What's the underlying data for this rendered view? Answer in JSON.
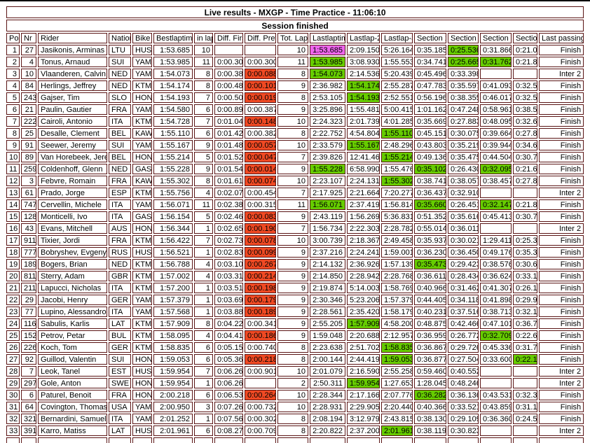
{
  "title": "Live results - MXGP - Time Practice - 11:06:10",
  "status": "Session finished",
  "colors": {
    "magenta": "#ee66ee",
    "green": "#66cc00",
    "orange": "#f04923",
    "border": "#5a1414"
  },
  "columns": [
    {
      "key": "pos",
      "label": "Pos"
    },
    {
      "key": "nr",
      "label": "Nr"
    },
    {
      "key": "rider",
      "label": "Rider"
    },
    {
      "key": "nation",
      "label": "Nation"
    },
    {
      "key": "bike",
      "label": "Bike"
    },
    {
      "key": "best",
      "label": "Bestlaptime"
    },
    {
      "key": "inlap",
      "label": "in lap"
    },
    {
      "key": "difffirst",
      "label": "Diff. First"
    },
    {
      "key": "diffprev",
      "label": "Diff. Prev."
    },
    {
      "key": "totlaps",
      "label": "Tot. Laps"
    },
    {
      "key": "last1",
      "label": "Lastlaptime"
    },
    {
      "key": "last2",
      "label": "Lastlap-2"
    },
    {
      "key": "last3",
      "label": "Lastlap-3"
    },
    {
      "key": "s1",
      "label": "Section 1"
    },
    {
      "key": "s2",
      "label": "Section 2"
    },
    {
      "key": "s3",
      "label": "Section 3"
    },
    {
      "key": "s4",
      "label": "Section 4"
    },
    {
      "key": "passing",
      "label": "Last passing"
    }
  ],
  "rows": [
    {
      "c": [
        "1",
        "27",
        "Jasikonis, Arminas",
        "LTU",
        "HUS",
        "1:53.685",
        "10",
        "",
        "",
        "10",
        "1:53.685",
        "2:09.150",
        "5:26.164",
        "0:35.185",
        "0:25.536",
        "0:31.866",
        "0:21.098",
        "Finish"
      ],
      "hl": {
        "last1": "magenta",
        "s2": "green"
      }
    },
    {
      "c": [
        "2",
        "4",
        "Tonus, Arnaud",
        "SUI",
        "YAM",
        "1:53.985",
        "11",
        "0:00.300",
        "0:00.300",
        "11",
        "1:53.985",
        "3:08.930",
        "1:55.553",
        "0:34.741",
        "0:25.665",
        "0:31.762",
        "0:21.817",
        "Finish"
      ],
      "hl": {
        "last1": "green",
        "s2": "green",
        "s3": "green"
      }
    },
    {
      "c": [
        "3",
        "10",
        "Vlaanderen, Calvin",
        "NED",
        "YAM",
        "1:54.073",
        "8",
        "0:00.388",
        "0:00.088",
        "8",
        "1:54.073",
        "2:14.536",
        "5:20.439",
        "0:45.496",
        "0:33.398",
        "",
        "",
        "Inter 2"
      ],
      "hl": {
        "diffprev": "orange",
        "last1": "green"
      }
    },
    {
      "c": [
        "4",
        "84",
        "Herlings, Jeffrey",
        "NED",
        "KTM",
        "1:54.174",
        "8",
        "0:00.489",
        "0:00.101",
        "9",
        "2:36.982",
        "1:54.174",
        "2:55.287",
        "0:47.783",
        "0:35.597",
        "0:41.093",
        "0:32.509",
        "Finish"
      ],
      "hl": {
        "diffprev": "orange",
        "last2": "green"
      }
    },
    {
      "c": [
        "5",
        "243",
        "Gajser, Tim",
        "SLO",
        "HON",
        "1:54.193",
        "7",
        "0:00.508",
        "0:00.019",
        "8",
        "2:53.105",
        "1:54.193",
        "2:52.551",
        "0:56.196",
        "0:38.355",
        "0:46.017",
        "0:32.537",
        "Finish"
      ],
      "hl": {
        "diffprev": "orange",
        "last2": "green"
      }
    },
    {
      "c": [
        "6",
        "21",
        "Paulin, Gautier",
        "FRA",
        "YAM",
        "1:54.580",
        "6",
        "0:00.895",
        "0:00.387",
        "9",
        "3:25.896",
        "1:55.481",
        "5:00.415",
        "1:01.162",
        "0:47.248",
        "0:58.961",
        "0:38.525",
        "Finish"
      ],
      "hl": {}
    },
    {
      "c": [
        "7",
        "222",
        "Cairoli, Antonio",
        "ITA",
        "KTM",
        "1:54.728",
        "7",
        "0:01.043",
        "0:00.148",
        "10",
        "2:24.323",
        "2:01.739",
        "4:01.285",
        "0:35.669",
        "0:27.883",
        "0:48.095",
        "0:32.676",
        "Finish"
      ],
      "hl": {
        "diffprev": "orange"
      }
    },
    {
      "c": [
        "8",
        "25",
        "Desalle, Clement",
        "BEL",
        "KAW",
        "1:55.110",
        "6",
        "0:01.425",
        "0:00.382",
        "8",
        "2:22.752",
        "4:54.804",
        "1:55.110",
        "0:45.151",
        "0:30.075",
        "0:39.664",
        "0:27.862",
        "Finish"
      ],
      "hl": {
        "last3": "green"
      }
    },
    {
      "c": [
        "9",
        "91",
        "Seewer, Jeremy",
        "SUI",
        "YAM",
        "1:55.167",
        "9",
        "0:01.482",
        "0:00.057",
        "10",
        "2:33.579",
        "1:55.167",
        "2:48.296",
        "0:43.803",
        "0:35.219",
        "0:39.944",
        "0:34.613",
        "Finish"
      ],
      "hl": {
        "diffprev": "orange",
        "last2": "green"
      }
    },
    {
      "c": [
        "10",
        "89",
        "Van Horebeek, Jeremy",
        "BEL",
        "HON",
        "1:55.214",
        "5",
        "0:01.529",
        "0:00.047",
        "7",
        "2:39.826",
        "12:41.467",
        "1:55.214",
        "0:49.136",
        "0:35.475",
        "0:44.504",
        "0:30.711",
        "Finish"
      ],
      "hl": {
        "diffprev": "orange",
        "last3": "green"
      }
    },
    {
      "c": [
        "11",
        "259",
        "Coldenhoff, Glenn",
        "NED",
        "GAS",
        "1:55.228",
        "9",
        "0:01.543",
        "0:00.014",
        "9",
        "1:55.228",
        "6:58.990",
        "1:55.476",
        "0:35.102",
        "0:26.430",
        "0:32.095",
        "0:21.601",
        "Finish"
      ],
      "hl": {
        "diffprev": "orange",
        "last1": "green",
        "s1": "green",
        "s3": "green"
      }
    },
    {
      "c": [
        "12",
        "3",
        "Febvre, Romain",
        "FRA",
        "KAW",
        "1:55.302",
        "8",
        "0:01.617",
        "0:00.074",
        "10",
        "2:23.107",
        "2:24.131",
        "1:55.302",
        "0:38.741",
        "0:38.057",
        "0:38.457",
        "0:27.852",
        "Finish"
      ],
      "hl": {
        "diffprev": "orange",
        "last3": "green"
      }
    },
    {
      "c": [
        "13",
        "61",
        "Prado, Jorge",
        "ESP",
        "KTM",
        "1:55.756",
        "4",
        "0:02.071",
        "0:00.454",
        "7",
        "2:17.925",
        "2:21.664",
        "7:20.277",
        "0:36.437",
        "0:32.910",
        "",
        "",
        "Inter 2"
      ],
      "hl": {}
    },
    {
      "c": [
        "14",
        "747",
        "Cervellin, Michele",
        "ITA",
        "YAM",
        "1:56.071",
        "11",
        "0:02.386",
        "0:00.315",
        "11",
        "1:56.071",
        "2:37.419",
        "1:56.814",
        "0:35.660",
        "0:26.451",
        "0:32.147",
        "0:21.813",
        "Finish"
      ],
      "hl": {
        "last1": "green",
        "s1": "green",
        "s3": "green"
      }
    },
    {
      "c": [
        "15",
        "128",
        "Monticelli, Ivo",
        "ITA",
        "GAS",
        "1:56.154",
        "5",
        "0:02.469",
        "0:00.083",
        "9",
        "2:43.119",
        "1:56.269",
        "5:36.831",
        "0:51.352",
        "0:35.616",
        "0:45.413",
        "0:30.738",
        "Finish"
      ],
      "hl": {
        "diffprev": "orange"
      }
    },
    {
      "c": [
        "16",
        "43",
        "Evans, Mitchell",
        "AUS",
        "HON",
        "1:56.344",
        "1",
        "0:02.659",
        "0:00.190",
        "7",
        "1:56.734",
        "2:22.303",
        "2:28.782",
        "0:55.014",
        "0:36.011",
        "",
        "",
        "Inter 2"
      ],
      "hl": {
        "diffprev": "orange"
      }
    },
    {
      "c": [
        "17",
        "911",
        "Tixier, Jordi",
        "FRA",
        "KTM",
        "1:56.422",
        "7",
        "0:02.737",
        "0:00.078",
        "10",
        "3:00.739",
        "2:18.367",
        "2:49.458",
        "0:35.937",
        "0:30.021",
        "1:29.411",
        "0:25.370",
        "Finish"
      ],
      "hl": {
        "diffprev": "orange"
      }
    },
    {
      "c": [
        "18",
        "777",
        "Bobryshev, Evgeny",
        "RUS",
        "HUS",
        "1:56.521",
        "1",
        "0:02.836",
        "0:00.099",
        "9",
        "2:37.216",
        "2:24.241",
        "1:59.001",
        "0:36.230",
        "0:36.450",
        "0:49.176",
        "0:35.360",
        "Finish"
      ],
      "hl": {
        "diffprev": "orange"
      }
    },
    {
      "c": [
        "19",
        "189",
        "Bogers, Brian",
        "NED",
        "KTM",
        "1:56.788",
        "4",
        "0:03.103",
        "0:00.267",
        "9",
        "2:14.132",
        "2:36.926",
        "1:57.139",
        "0:35.473",
        "0:29.423",
        "0:38.576",
        "0:30.660",
        "Finish"
      ],
      "hl": {
        "diffprev": "orange",
        "s1": "green"
      }
    },
    {
      "c": [
        "20",
        "811",
        "Sterry, Adam",
        "GBR",
        "KTM",
        "1:57.002",
        "4",
        "0:03.317",
        "0:00.214",
        "9",
        "2:14.850",
        "2:28.942",
        "2:28.768",
        "0:36.611",
        "0:28.434",
        "0:36.624",
        "0:33.181",
        "Finish"
      ],
      "hl": {
        "diffprev": "orange"
      }
    },
    {
      "c": [
        "21",
        "211",
        "Lapucci, Nicholas",
        "ITA",
        "KTM",
        "1:57.200",
        "1",
        "0:03.515",
        "0:00.198",
        "9",
        "2:19.874",
        "5:14.003",
        "1:58.769",
        "0:40.966",
        "0:31.462",
        "0:41.307",
        "0:26.139",
        "Finish"
      ],
      "hl": {
        "diffprev": "orange"
      }
    },
    {
      "c": [
        "22",
        "29",
        "Jacobi, Henry",
        "GER",
        "YAM",
        "1:57.379",
        "1",
        "0:03.694",
        "0:00.179",
        "9",
        "2:30.346",
        "5:23.206",
        "1:57.379",
        "0:44.405",
        "0:34.118",
        "0:41.898",
        "0:29.925",
        "Finish"
      ],
      "hl": {
        "diffprev": "orange"
      }
    },
    {
      "c": [
        "23",
        "77",
        "Lupino, Alessandro",
        "ITA",
        "YAM",
        "1:57.568",
        "1",
        "0:03.883",
        "0:00.189",
        "9",
        "2:28.561",
        "2:35.420",
        "1:58.179",
        "0:40.231",
        "0:37.516",
        "0:38.713",
        "0:32.101",
        "Finish"
      ],
      "hl": {
        "diffprev": "orange"
      }
    },
    {
      "c": [
        "24",
        "116",
        "Sabulis, Karlis",
        "LAT",
        "KTM",
        "1:57.909",
        "8",
        "0:04.224",
        "0:00.341",
        "9",
        "2:55.205",
        "1:57.909",
        "4:58.200",
        "0:48.875",
        "0:42.466",
        "0:47.101",
        "0:36.763",
        "Finish"
      ],
      "hl": {
        "last2": "green"
      }
    },
    {
      "c": [
        "25",
        "152",
        "Petrov, Petar",
        "BUL",
        "KTM",
        "1:58.095",
        "4",
        "0:04.410",
        "0:00.186",
        "9",
        "1:59.048",
        "2:20.688",
        "2:12.957",
        "0:36.959",
        "0:26.772",
        "0:32.709",
        "0:22.608",
        "Finish"
      ],
      "hl": {
        "diffprev": "orange",
        "s3": "green"
      }
    },
    {
      "c": [
        "26",
        "226",
        "Koch, Tom",
        "GER",
        "KTM",
        "1:58.835",
        "6",
        "0:05.150",
        "0:00.740",
        "8",
        "2:23.638",
        "2:51.702",
        "1:58.835",
        "0:36.867",
        "0:29.726",
        "0:45.336",
        "0:31.709",
        "Finish"
      ],
      "hl": {
        "last3": "green"
      }
    },
    {
      "c": [
        "27",
        "92",
        "Guillod, Valentin",
        "SUI",
        "HON",
        "1:59.053",
        "6",
        "0:05.368",
        "0:00.218",
        "8",
        "2:00.144",
        "2:44.419",
        "1:59.053",
        "0:36.877",
        "0:27.504",
        "0:33.600",
        "0:22.163",
        "Finish"
      ],
      "hl": {
        "diffprev": "orange",
        "last3": "green",
        "s4": "green"
      }
    },
    {
      "c": [
        "28",
        "7",
        "Leok, Tanel",
        "EST",
        "HUS",
        "1:59.954",
        "7",
        "0:06.269",
        "0:00.901",
        "10",
        "2:01.079",
        "2:16.590",
        "2:55.258",
        "0:59.460",
        "0:40.552",
        "",
        "",
        "Inter 2"
      ],
      "hl": {}
    },
    {
      "c": [
        "29",
        "297",
        "Gole, Anton",
        "SWE",
        "HON",
        "1:59.954",
        "1",
        "0:06.269",
        "",
        "2",
        "2:50.311",
        "1:59.954",
        "1:27.653",
        "1:28.045",
        "0:48.246",
        "",
        "",
        "Inter 2"
      ],
      "hl": {
        "last2": "green"
      }
    },
    {
      "c": [
        "30",
        "6",
        "Paturel, Benoit",
        "FRA",
        "HON",
        "2:00.218",
        "6",
        "0:06.533",
        "0:00.264",
        "10",
        "2:28.344",
        "2:17.166",
        "2:07.776",
        "0:36.282",
        "0:36.136",
        "0:43.531",
        "0:32.395",
        "Finish"
      ],
      "hl": {
        "diffprev": "orange",
        "s1": "green"
      }
    },
    {
      "c": [
        "31",
        "64",
        "Covington, Thomas",
        "USA",
        "YAM",
        "2:00.950",
        "3",
        "0:07.265",
        "0:00.732",
        "10",
        "2:28.931",
        "2:29.905",
        "2:20.440",
        "0:40.366",
        "0:33.521",
        "0:43.859",
        "0:31.185",
        "Finish"
      ],
      "hl": {}
    },
    {
      "c": [
        "32",
        "321",
        "Bernardini, Samuele",
        "ITA",
        "YAM",
        "2:01.252",
        "1",
        "0:07.567",
        "0:00.302",
        "8",
        "2:08.194",
        "3:12.979",
        "2:43.815",
        "0:38.130",
        "0:29.109",
        "0:36.360",
        "0:24.595",
        "Finish"
      ],
      "hl": {}
    },
    {
      "c": [
        "33",
        "391",
        "Karro, Matiss",
        "LAT",
        "HUS",
        "2:01.961",
        "6",
        "0:08.276",
        "0:00.709",
        "8",
        "2:20.822",
        "2:37.200",
        "2:01.961",
        "0:38.119",
        "0:30.823",
        "",
        "",
        "Inter 2"
      ],
      "hl": {
        "last3": "green"
      }
    }
  ]
}
